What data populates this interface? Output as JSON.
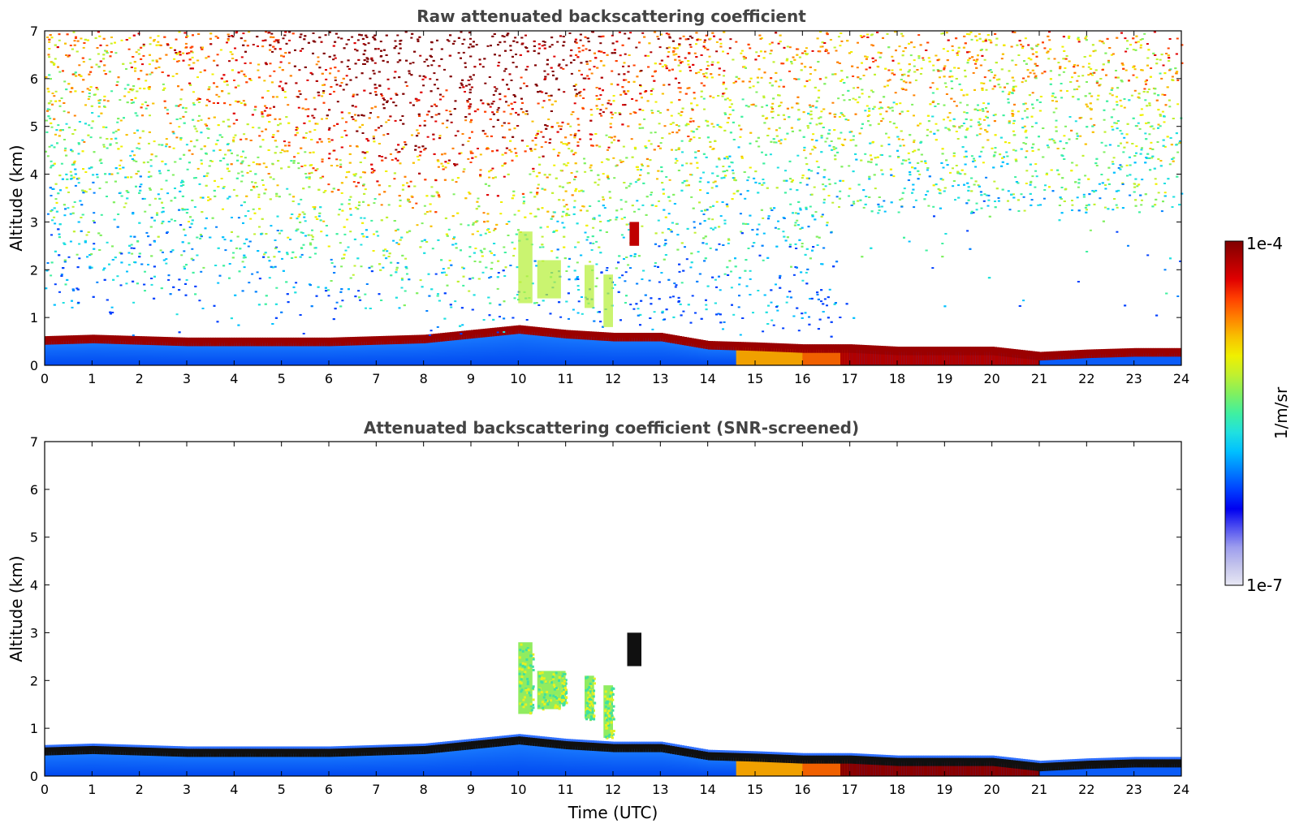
{
  "chart_data": [
    {
      "type": "heatmap",
      "title": "Raw attenuated backscattering coefficient",
      "xlabel": "",
      "ylabel": "Altitude (km)",
      "xlim": [
        0,
        24
      ],
      "ylim": [
        0,
        7
      ],
      "xticks": [
        0,
        1,
        2,
        3,
        4,
        5,
        6,
        7,
        8,
        9,
        10,
        11,
        12,
        13,
        14,
        15,
        16,
        17,
        18,
        19,
        20,
        21,
        22,
        23,
        24
      ],
      "yticks": [
        0,
        1,
        2,
        3,
        4,
        5,
        6,
        7
      ],
      "color_scale": "log",
      "clim": [
        1e-07,
        0.0001
      ],
      "boundary_layer_top_km": [
        [
          0,
          0.55
        ],
        [
          1,
          0.58
        ],
        [
          2,
          0.55
        ],
        [
          3,
          0.52
        ],
        [
          4,
          0.52
        ],
        [
          5,
          0.52
        ],
        [
          6,
          0.52
        ],
        [
          7,
          0.55
        ],
        [
          8,
          0.58
        ],
        [
          9,
          0.68
        ],
        [
          10,
          0.78
        ],
        [
          11,
          0.68
        ],
        [
          12,
          0.62
        ],
        [
          13,
          0.62
        ],
        [
          14,
          0.45
        ],
        [
          15,
          0.42
        ],
        [
          16,
          0.38
        ],
        [
          17,
          0.38
        ],
        [
          18,
          0.33
        ],
        [
          19,
          0.33
        ],
        [
          20,
          0.33
        ],
        [
          21,
          0.22
        ],
        [
          22,
          0.27
        ],
        [
          23,
          0.3
        ],
        [
          24,
          0.3
        ]
      ],
      "notes_visible": [
        "clear column above ~1 km from 17 to 24 UTC",
        "virga 10–12 UTC at 1–2.8 km",
        "cloud near 12.4 UTC at 2.7 km"
      ]
    },
    {
      "type": "heatmap",
      "title": "Attenuated backscattering coefficient (SNR-screened)",
      "xlabel": "Time (UTC)",
      "ylabel": "Altitude (km)",
      "xlim": [
        0,
        24
      ],
      "ylim": [
        0,
        7
      ],
      "xticks": [
        0,
        1,
        2,
        3,
        4,
        5,
        6,
        7,
        8,
        9,
        10,
        11,
        12,
        13,
        14,
        15,
        16,
        17,
        18,
        19,
        20,
        21,
        22,
        23,
        24
      ],
      "yticks": [
        0,
        1,
        2,
        3,
        4,
        5,
        6,
        7
      ],
      "color_scale": "log",
      "clim": [
        1e-07,
        0.0001
      ],
      "virga_patches": [
        {
          "x": [
            10.0,
            10.3
          ],
          "y": [
            1.3,
            2.8
          ]
        },
        {
          "x": [
            10.4,
            10.9
          ],
          "y": [
            1.4,
            2.2
          ]
        },
        {
          "x": [
            10.9,
            11.0
          ],
          "y": [
            1.5,
            2.2
          ]
        },
        {
          "x": [
            11.4,
            11.6
          ],
          "y": [
            1.2,
            2.1
          ]
        },
        {
          "x": [
            11.8,
            12.0
          ],
          "y": [
            0.8,
            1.9
          ]
        }
      ],
      "cloud_patch": {
        "x": [
          12.3,
          12.6
        ],
        "y": [
          2.3,
          3.0
        ]
      }
    }
  ],
  "colorbar": {
    "label": "1/m/sr",
    "min_label": "1e-7",
    "max_label": "1e-4",
    "colormap": [
      "#e8e8f4",
      "#c4c4ec",
      "#9d9dee",
      "#5050f0",
      "#0000f0",
      "#0040ff",
      "#0080ff",
      "#00c0ff",
      "#20e0e0",
      "#40f0a0",
      "#80f060",
      "#c0f030",
      "#f0f000",
      "#f8c000",
      "#ff8000",
      "#ff4000",
      "#e00000",
      "#b00000",
      "#800000"
    ]
  }
}
